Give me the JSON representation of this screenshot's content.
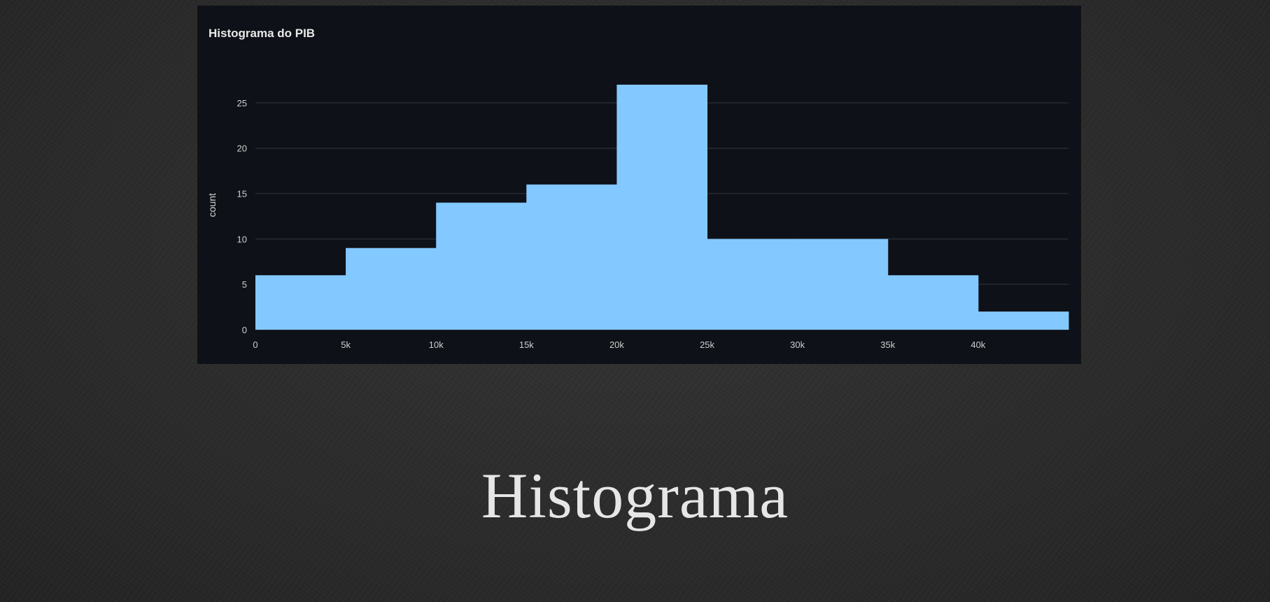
{
  "slide": {
    "title": "Histograma"
  },
  "chart_data": {
    "type": "bar",
    "title": "Histograma do PIB",
    "xlabel": "",
    "ylabel": "count",
    "bin_edges": [
      0,
      5000,
      10000,
      15000,
      20000,
      25000,
      30000,
      35000,
      40000,
      45000
    ],
    "values": [
      6,
      9,
      14,
      16,
      27,
      10,
      10,
      6,
      2
    ],
    "xlim": [
      0,
      45000
    ],
    "ylim": [
      0,
      28
    ],
    "x_ticks": [
      0,
      5000,
      10000,
      15000,
      20000,
      25000,
      30000,
      35000,
      40000
    ],
    "x_tick_labels": [
      "0",
      "5k",
      "10k",
      "15k",
      "20k",
      "25k",
      "30k",
      "35k",
      "40k"
    ],
    "y_ticks": [
      0,
      5,
      10,
      15,
      20,
      25
    ],
    "y_tick_labels": [
      "0",
      "5",
      "10",
      "15",
      "20",
      "25"
    ],
    "grid": true,
    "bar_color": "#83c9ff",
    "background_color": "#0e1117",
    "grid_color": "#262a33"
  }
}
